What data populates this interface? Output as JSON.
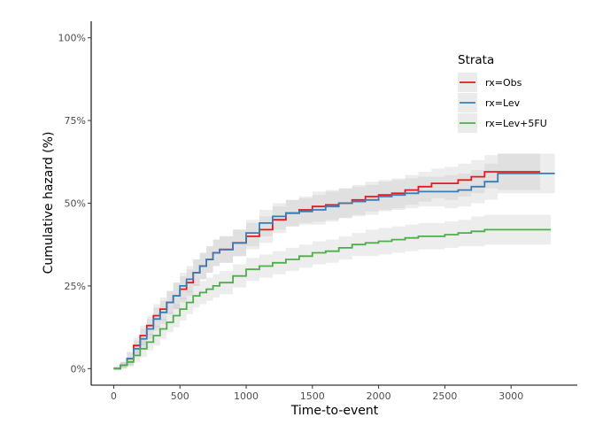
{
  "chart_data": {
    "type": "line",
    "step": true,
    "title": "",
    "xlabel": "Time-to-event",
    "ylabel": "Cumulative hazard (%)",
    "xlim": [
      -170,
      3500
    ],
    "ylim": [
      -0.05,
      1.05
    ],
    "x_ticks": [
      0,
      500,
      1000,
      1500,
      2000,
      2500,
      3000
    ],
    "x_tick_labels": [
      "0",
      "500",
      "1000",
      "1500",
      "2000",
      "2500",
      "3000"
    ],
    "y_ticks": [
      0,
      0.25,
      0.5,
      0.75,
      1.0
    ],
    "y_tick_labels": [
      "0%",
      "25%",
      "50%",
      "75%",
      "100%"
    ],
    "grid": false,
    "legend": {
      "title": "Strata",
      "position": "top-right"
    },
    "series": [
      {
        "name": "rx=Obs",
        "color": "#E41A1C",
        "x": [
          0,
          50,
          100,
          150,
          200,
          250,
          300,
          350,
          400,
          450,
          500,
          550,
          600,
          650,
          700,
          750,
          800,
          900,
          1000,
          1100,
          1200,
          1300,
          1400,
          1500,
          1600,
          1700,
          1800,
          1900,
          2000,
          2100,
          2200,
          2300,
          2400,
          2500,
          2600,
          2700,
          2800,
          2900,
          3000,
          3100,
          3220
        ],
        "y": [
          0,
          0.01,
          0.03,
          0.07,
          0.1,
          0.13,
          0.16,
          0.18,
          0.2,
          0.22,
          0.24,
          0.26,
          0.29,
          0.31,
          0.33,
          0.35,
          0.36,
          0.38,
          0.4,
          0.42,
          0.45,
          0.47,
          0.48,
          0.49,
          0.495,
          0.5,
          0.51,
          0.52,
          0.525,
          0.53,
          0.54,
          0.55,
          0.56,
          0.56,
          0.57,
          0.58,
          0.595,
          0.595,
          0.595,
          0.595,
          0.595
        ],
        "band": [
          0.005,
          0.01,
          0.02,
          0.025,
          0.03,
          0.03,
          0.035,
          0.035,
          0.035,
          0.04,
          0.04,
          0.04,
          0.04,
          0.04,
          0.04,
          0.04,
          0.04,
          0.04,
          0.04,
          0.04,
          0.04,
          0.04,
          0.04,
          0.045,
          0.045,
          0.045,
          0.045,
          0.045,
          0.045,
          0.045,
          0.045,
          0.045,
          0.045,
          0.05,
          0.05,
          0.05,
          0.05,
          0.055,
          0.055,
          0.055,
          0.055
        ]
      },
      {
        "name": "rx=Lev",
        "color": "#377EB8",
        "x": [
          0,
          50,
          100,
          150,
          200,
          250,
          300,
          350,
          400,
          450,
          500,
          550,
          600,
          650,
          700,
          750,
          800,
          900,
          1000,
          1100,
          1200,
          1300,
          1400,
          1500,
          1600,
          1700,
          1800,
          1900,
          2000,
          2100,
          2200,
          2300,
          2400,
          2500,
          2600,
          2700,
          2800,
          2900,
          3000,
          3100,
          3330
        ],
        "y": [
          0,
          0.01,
          0.03,
          0.06,
          0.09,
          0.12,
          0.15,
          0.17,
          0.2,
          0.22,
          0.25,
          0.27,
          0.29,
          0.31,
          0.33,
          0.35,
          0.36,
          0.38,
          0.41,
          0.44,
          0.46,
          0.47,
          0.475,
          0.48,
          0.49,
          0.5,
          0.505,
          0.51,
          0.52,
          0.525,
          0.53,
          0.535,
          0.535,
          0.535,
          0.54,
          0.55,
          0.565,
          0.59,
          0.59,
          0.59,
          0.59
        ],
        "band": [
          0.005,
          0.01,
          0.02,
          0.025,
          0.03,
          0.03,
          0.035,
          0.035,
          0.035,
          0.04,
          0.04,
          0.04,
          0.04,
          0.04,
          0.04,
          0.04,
          0.04,
          0.04,
          0.04,
          0.04,
          0.04,
          0.04,
          0.04,
          0.045,
          0.045,
          0.045,
          0.045,
          0.045,
          0.045,
          0.045,
          0.045,
          0.045,
          0.045,
          0.05,
          0.05,
          0.05,
          0.055,
          0.06,
          0.06,
          0.06,
          0.06
        ]
      },
      {
        "name": "rx=Lev+5FU",
        "color": "#4DAF4A",
        "x": [
          0,
          50,
          100,
          150,
          200,
          250,
          300,
          350,
          400,
          450,
          500,
          550,
          600,
          650,
          700,
          750,
          800,
          900,
          1000,
          1100,
          1200,
          1300,
          1400,
          1500,
          1600,
          1700,
          1800,
          1900,
          2000,
          2100,
          2200,
          2300,
          2400,
          2500,
          2600,
          2700,
          2800,
          2900,
          3000,
          3100,
          3300
        ],
        "y": [
          0,
          0.01,
          0.02,
          0.04,
          0.06,
          0.08,
          0.1,
          0.12,
          0.14,
          0.16,
          0.18,
          0.2,
          0.22,
          0.23,
          0.24,
          0.25,
          0.26,
          0.28,
          0.3,
          0.31,
          0.32,
          0.33,
          0.34,
          0.35,
          0.355,
          0.365,
          0.375,
          0.38,
          0.385,
          0.39,
          0.395,
          0.4,
          0.4,
          0.405,
          0.41,
          0.415,
          0.42,
          0.42,
          0.42,
          0.42,
          0.42
        ],
        "band": [
          0.005,
          0.01,
          0.015,
          0.02,
          0.025,
          0.025,
          0.03,
          0.03,
          0.03,
          0.035,
          0.035,
          0.035,
          0.035,
          0.035,
          0.035,
          0.035,
          0.035,
          0.035,
          0.035,
          0.035,
          0.035,
          0.035,
          0.035,
          0.035,
          0.035,
          0.035,
          0.035,
          0.04,
          0.04,
          0.04,
          0.04,
          0.04,
          0.04,
          0.04,
          0.04,
          0.045,
          0.045,
          0.045,
          0.045,
          0.045,
          0.045
        ]
      }
    ]
  }
}
